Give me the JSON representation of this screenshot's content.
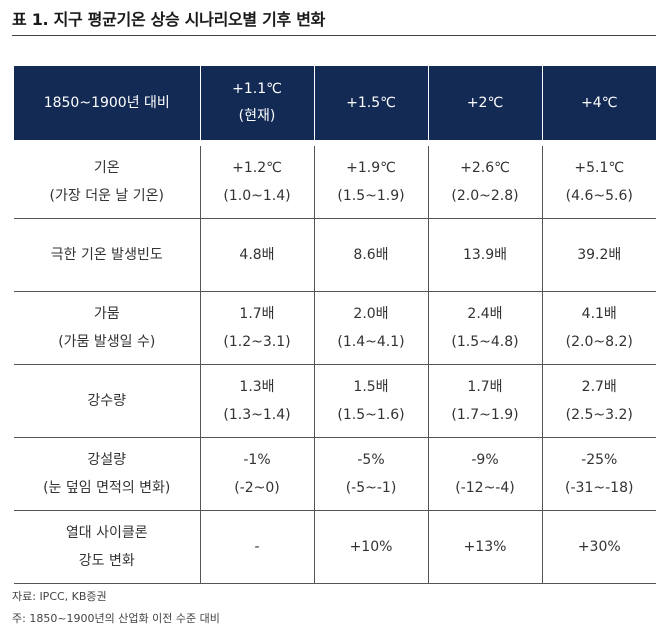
{
  "title": "표 1. 지구 평균기온 상승 시나리오별 기후 변화",
  "table": {
    "header": [
      {
        "line1": "1850~1900년 대비",
        "line2": ""
      },
      {
        "line1": "+1.1℃",
        "line2": "(현재)"
      },
      {
        "line1": "+1.5℃",
        "line2": ""
      },
      {
        "line1": "+2℃",
        "line2": ""
      },
      {
        "line1": "+4℃",
        "line2": ""
      }
    ],
    "rows": [
      {
        "label": {
          "line1": "기온",
          "line2": "(가장 더운 날 기온)"
        },
        "cells": [
          {
            "line1": "+1.2℃",
            "line2": "(1.0~1.4)"
          },
          {
            "line1": "+1.9℃",
            "line2": "(1.5~1.9)"
          },
          {
            "line1": "+2.6℃",
            "line2": "(2.0~2.8)"
          },
          {
            "line1": "+5.1℃",
            "line2": "(4.6~5.6)"
          }
        ]
      },
      {
        "label": {
          "line1": "극한 기온 발생빈도",
          "line2": ""
        },
        "cells": [
          {
            "line1": "4.8배",
            "line2": ""
          },
          {
            "line1": "8.6배",
            "line2": ""
          },
          {
            "line1": "13.9배",
            "line2": ""
          },
          {
            "line1": "39.2배",
            "line2": ""
          }
        ]
      },
      {
        "label": {
          "line1": "가뭄",
          "line2": "(가뭄 발생일 수)"
        },
        "cells": [
          {
            "line1": "1.7배",
            "line2": "(1.2~3.1)"
          },
          {
            "line1": "2.0배",
            "line2": "(1.4~4.1)"
          },
          {
            "line1": "2.4배",
            "line2": "(1.5~4.8)"
          },
          {
            "line1": "4.1배",
            "line2": "(2.0~8.2)"
          }
        ]
      },
      {
        "label": {
          "line1": "강수량",
          "line2": ""
        },
        "cells": [
          {
            "line1": "1.3배",
            "line2": "(1.3~1.4)"
          },
          {
            "line1": "1.5배",
            "line2": "(1.5~1.6)"
          },
          {
            "line1": "1.7배",
            "line2": "(1.7~1.9)"
          },
          {
            "line1": "2.7배",
            "line2": "(2.5~3.2)"
          }
        ]
      },
      {
        "label": {
          "line1": "강설량",
          "line2": "(눈 덮임 면적의 변화)"
        },
        "cells": [
          {
            "line1": "-1%",
            "line2": "(-2~0)"
          },
          {
            "line1": "-5%",
            "line2": "(-5~-1)"
          },
          {
            "line1": "-9%",
            "line2": "(-12~-4)"
          },
          {
            "line1": "-25%",
            "line2": "(-31~-18)"
          }
        ]
      },
      {
        "label": {
          "line1": "열대 사이클론",
          "line2": "강도 변화"
        },
        "cells": [
          {
            "line1": "-",
            "line2": ""
          },
          {
            "line1": "+10%",
            "line2": ""
          },
          {
            "line1": "+13%",
            "line2": ""
          },
          {
            "line1": "+30%",
            "line2": ""
          }
        ]
      }
    ]
  },
  "source": "자료: IPCC, KB증권",
  "footnote": "주: 1850~1900년의 산업화 이전 수준 대비",
  "colors": {
    "header_bg": "#132a55",
    "header_text": "#ffffff",
    "rule": "#555555"
  }
}
